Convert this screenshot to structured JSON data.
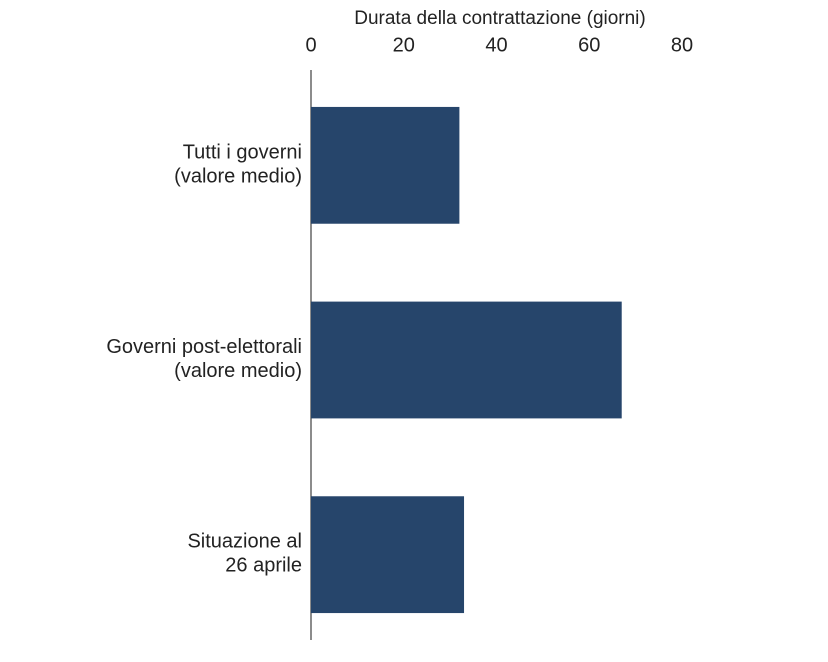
{
  "chart_data": {
    "type": "bar",
    "orientation": "horizontal",
    "x_label": "Durata della contrattazione (giorni)",
    "categories": [
      "Tutti i governi\n(valore medio)",
      "Governi post-elettorali\n(valore medio)",
      "Situazione al\n26 aprile"
    ],
    "values": [
      32,
      67,
      33
    ],
    "color": "#26456b",
    "xlim": [
      0,
      80
    ],
    "xticks": [
      0,
      20,
      40,
      60,
      80
    ],
    "grid": false
  }
}
